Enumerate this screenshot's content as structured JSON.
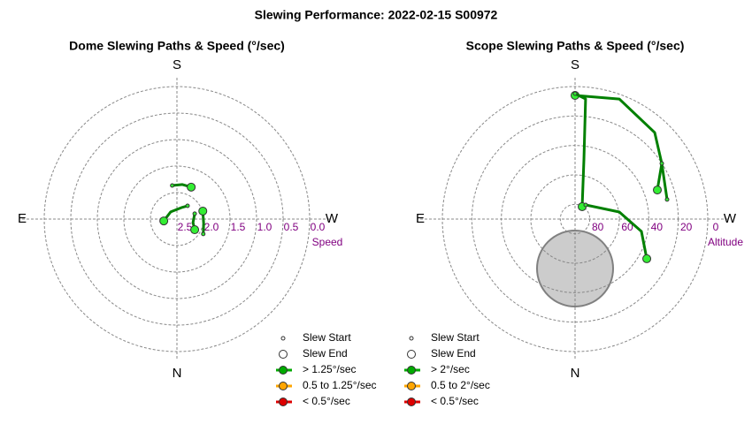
{
  "title": "Slewing Performance: 2022-02-15 S00972",
  "chart_data": [
    {
      "type": "polar",
      "title": "Dome Slewing Paths & Speed (°/sec)",
      "rlabel": "Speed",
      "compass_labels": [
        "S",
        "W",
        "N",
        "E"
      ],
      "rlim": [
        2.5,
        0
      ],
      "rticks": [
        2.5,
        {
          "value": 2,
          "label": "2.0"
        },
        1.5,
        {
          "value": 1,
          "label": "1.0"
        },
        0.5,
        {
          "value": 0,
          "label": "0.0"
        }
      ],
      "color": "#008000",
      "marker_color": "#33ee33",
      "slews": [
        {
          "az": [
            172,
            189,
            204
          ],
          "r": [
            1.86,
            1.84,
            1.84
          ]
        },
        {
          "az": [
            218.7,
            201,
            138.8,
            82
          ],
          "r": [
            2.18,
            2.27,
            2.32,
            2.25
          ]
        },
        {
          "az": [
            253,
            282.5,
            301
          ],
          "r": [
            2.15,
            2.19,
            2.11
          ]
        },
        {
          "az": [
            299.5,
            279.4,
            252.8
          ],
          "r": [
            1.93,
            1.99,
            1.99
          ]
        }
      ],
      "legend": [
        {
          "label": "Slew Start"
        },
        {
          "label": "Slew End"
        },
        {
          "label": "> 1.25°/sec",
          "color": "#00aa00"
        },
        {
          "label": "0.5 to 1.25°/sec",
          "color": "#ffa500"
        },
        {
          "label": "< 0.5°/sec",
          "color": "#dd0000"
        }
      ]
    },
    {
      "type": "polar",
      "title": "Scope Slewing Paths & Speed (°/sec)",
      "rlabel": "Altitude",
      "compass_labels": [
        "S",
        "W",
        "N",
        "E"
      ],
      "rlim": [
        90,
        0
      ],
      "rticks": [
        80,
        60,
        40,
        20,
        0
      ],
      "color": "#008000",
      "marker_color": "#33ee33",
      "slews": [
        {
          "az": [
            258,
            237.3,
            222.6,
            200.2,
            180
          ],
          "r": [
            26.2,
            20.1,
            10.2,
            3.1,
            6
          ]
        },
        {
          "az": [
            180,
            185,
            188.4,
            209.8
          ],
          "r": [
            4.8,
            8.1,
            48.8,
            80.3
          ]
        },
        {
          "az": [
            216.9,
            260.9,
            280.6,
            299
          ],
          "r": [
            78,
            59.6,
            44.2,
            34.4
          ]
        },
        {
          "az": [
            237.3,
            250.5
          ],
          "r": [
            20.1,
            30.8
          ]
        }
      ],
      "legend": [
        {
          "label": "Slew Start"
        },
        {
          "label": "Slew End"
        },
        {
          "label": "> 2°/sec",
          "color": "#00aa00"
        },
        {
          "label": "0.5 to 2°/sec",
          "color": "#ffa500"
        },
        {
          "label": "< 0.5°/sec",
          "color": "#dd0000"
        }
      ]
    }
  ]
}
